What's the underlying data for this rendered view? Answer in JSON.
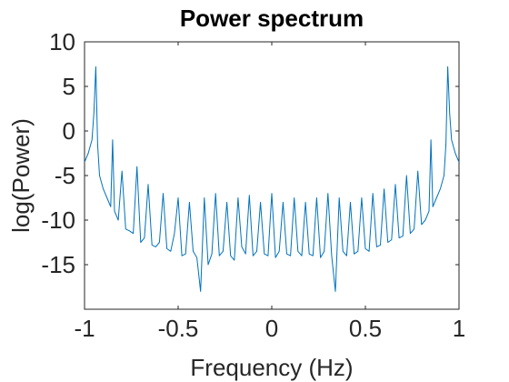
{
  "chart_data": {
    "type": "line",
    "title": "Power spectrum",
    "xlabel": "Frequency (Hz)",
    "ylabel": "log(Power)",
    "xlim": [
      -1,
      1
    ],
    "ylim": [
      -20,
      10
    ],
    "xticks": [
      -1,
      -0.5,
      0,
      0.5,
      1
    ],
    "xtick_labels": [
      "-1",
      "-0.5",
      "0",
      "0.5",
      "1"
    ],
    "yticks": [
      10,
      5,
      0,
      -5,
      -10,
      -15
    ],
    "ytick_labels": [
      "10",
      "5",
      "0",
      "-5",
      "-10",
      "-15"
    ],
    "grid": false,
    "line_color": "#0072BD",
    "series": [
      {
        "x": [
          -1.0,
          -0.98,
          -0.96,
          -0.95,
          -0.94,
          -0.93,
          -0.92,
          -0.9,
          -0.88,
          -0.86,
          -0.85,
          -0.84,
          -0.82,
          -0.8,
          -0.78,
          -0.76,
          -0.74,
          -0.72,
          -0.7,
          -0.68,
          -0.66,
          -0.64,
          -0.62,
          -0.6,
          -0.58,
          -0.56,
          -0.54,
          -0.52,
          -0.5,
          -0.48,
          -0.46,
          -0.44,
          -0.42,
          -0.4,
          -0.38,
          -0.36,
          -0.34,
          -0.32,
          -0.3,
          -0.28,
          -0.26,
          -0.24,
          -0.22,
          -0.2,
          -0.18,
          -0.16,
          -0.14,
          -0.12,
          -0.1,
          -0.08,
          -0.06,
          -0.04,
          -0.02,
          0.0,
          0.02,
          0.04,
          0.06,
          0.08,
          0.1,
          0.12,
          0.14,
          0.16,
          0.18,
          0.2,
          0.22,
          0.24,
          0.26,
          0.28,
          0.3,
          0.32,
          0.34,
          0.36,
          0.38,
          0.4,
          0.42,
          0.44,
          0.46,
          0.48,
          0.5,
          0.52,
          0.54,
          0.56,
          0.58,
          0.6,
          0.62,
          0.64,
          0.66,
          0.68,
          0.7,
          0.72,
          0.74,
          0.76,
          0.78,
          0.8,
          0.82,
          0.84,
          0.85,
          0.86,
          0.88,
          0.9,
          0.92,
          0.93,
          0.94,
          0.95,
          0.96,
          0.98,
          1.0
        ],
        "values": [
          -3.5,
          -2.5,
          -1.0,
          2.0,
          7.2,
          -1.5,
          -5.0,
          -6.5,
          -7.5,
          -8.5,
          -1.0,
          -9.0,
          -10.0,
          -4.5,
          -11.0,
          -11.2,
          -11.5,
          -4.0,
          -12.5,
          -12.0,
          -6.0,
          -12.8,
          -13.0,
          -12.5,
          -7.0,
          -13.2,
          -13.5,
          -11.5,
          -7.5,
          -14.0,
          -13.8,
          -8.0,
          -13.5,
          -14.2,
          -18.0,
          -7.5,
          -15.0,
          -13.8,
          -7.0,
          -14.0,
          -13.5,
          -8.0,
          -14.0,
          -14.5,
          -7.5,
          -13.0,
          -13.8,
          -7.2,
          -14.0,
          -13.5,
          -8.0,
          -13.8,
          -14.0,
          -7.0,
          -14.2,
          -13.5,
          -8.0,
          -13.8,
          -14.0,
          -7.5,
          -13.5,
          -14.0,
          -8.0,
          -13.8,
          -14.0,
          -7.5,
          -14.2,
          -13.5,
          -7.0,
          -14.0,
          -18.0,
          -7.5,
          -13.5,
          -14.0,
          -8.0,
          -13.8,
          -13.5,
          -7.5,
          -13.2,
          -13.5,
          -7.0,
          -13.0,
          -12.8,
          -6.5,
          -12.5,
          -12.2,
          -6.0,
          -12.0,
          -11.8,
          -5.0,
          -11.5,
          -11.0,
          -4.5,
          -10.5,
          -10.0,
          -9.0,
          -1.0,
          -8.5,
          -7.5,
          -6.5,
          -5.0,
          -1.5,
          7.2,
          2.0,
          -1.0,
          -2.5,
          -3.5
        ]
      }
    ]
  }
}
